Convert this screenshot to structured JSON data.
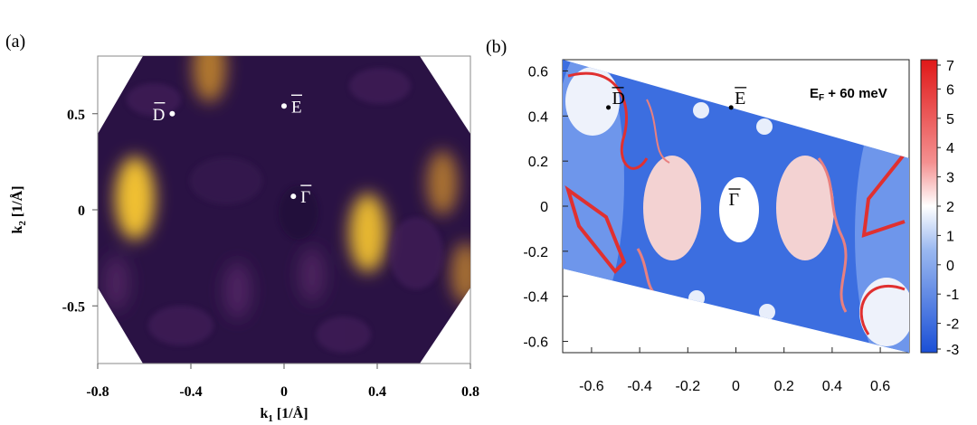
{
  "panel_a": {
    "label": "(a)",
    "xlabel_main": "k",
    "xlabel_sub": "1",
    "xlabel_unit": " [1/Å]",
    "ylabel_main": "k",
    "ylabel_sub": "2",
    "ylabel_unit": " [1/Å]",
    "points": [
      {
        "name": "D",
        "x": -0.48,
        "y": 0.5
      },
      {
        "name": "E",
        "x": 0.0,
        "y": 0.54
      },
      {
        "name": "Γ",
        "x": 0.04,
        "y": 0.07
      }
    ]
  },
  "panel_b": {
    "label": "(b)",
    "annotation": "E",
    "annotation_sub": "F",
    "annotation_rest": " + 60 meV",
    "points": [
      {
        "name": "D",
        "x": -0.53,
        "y": 0.47
      },
      {
        "name": "E",
        "x": -0.02,
        "y": 0.47
      },
      {
        "name": "Γ",
        "x": 0.0,
        "y": 0.02
      }
    ]
  },
  "chart_data": [
    {
      "type": "heatmap",
      "xlabel": "k1 [1/Å]",
      "ylabel": "k2 [1/Å]",
      "xlim": [
        -0.8,
        0.8
      ],
      "ylim": [
        -0.8,
        0.8
      ],
      "xticks": [
        "-0.8",
        "-0.4",
        "0",
        "0.4",
        "0.8"
      ],
      "yticks": [
        "0.5",
        "0",
        "-0.5"
      ],
      "ytick_values": [
        0.5,
        0,
        -0.5
      ],
      "colors": {
        "background": "#2a1244",
        "mid": "#5a2a6a",
        "high": "#f0c030"
      },
      "hotspots": [
        {
          "x": -0.64,
          "y": 0.06,
          "intensity": 1.0
        },
        {
          "x": 0.36,
          "y": -0.12,
          "intensity": 0.9
        },
        {
          "x": -0.32,
          "y": 0.74,
          "intensity": 0.7
        },
        {
          "x": 0.68,
          "y": 0.14,
          "intensity": 0.6
        },
        {
          "x": -0.2,
          "y": -0.42,
          "intensity": 0.45
        },
        {
          "x": 0.12,
          "y": -0.34,
          "intensity": 0.4
        },
        {
          "x": 0.78,
          "y": -0.33,
          "intensity": 0.55
        },
        {
          "x": -0.72,
          "y": -0.38,
          "intensity": 0.4
        }
      ]
    },
    {
      "type": "heatmap",
      "xlim": [
        -0.72,
        0.72
      ],
      "ylim": [
        -0.65,
        0.65
      ],
      "xticks": [
        "-0.6",
        "-0.4",
        "-0.2",
        "0",
        "0.2",
        "0.4",
        "0.6"
      ],
      "xtick_values": [
        -0.6,
        -0.4,
        -0.2,
        0,
        0.2,
        0.4,
        0.6
      ],
      "yticks": [
        "0.6",
        "0.4",
        "0.2",
        "0",
        "-0.2",
        "-0.4",
        "-0.6"
      ],
      "ytick_values": [
        0.6,
        0.4,
        0.2,
        0,
        -0.2,
        -0.4,
        -0.6
      ],
      "colorbar": {
        "ticks": [
          "7",
          "6",
          "5",
          "4",
          "3",
          "2",
          "1",
          "0",
          "-1",
          "-2",
          "-3"
        ],
        "tick_values": [
          7,
          6,
          5,
          4,
          3,
          2,
          1,
          0,
          -1,
          -2,
          -3
        ],
        "range": [
          -3,
          7
        ],
        "colors": {
          "low": "#1a4fd6",
          "mid": "#ffffff",
          "high": "#e01818"
        }
      }
    }
  ]
}
